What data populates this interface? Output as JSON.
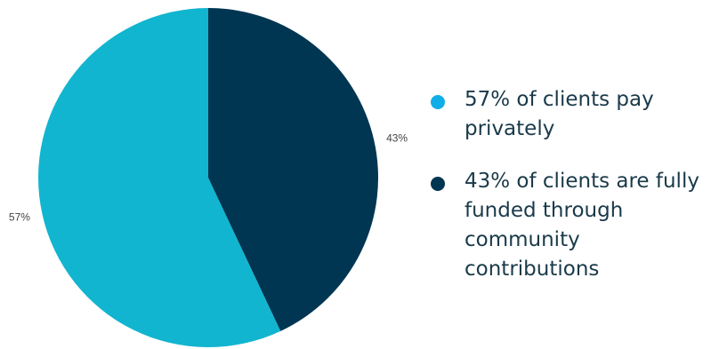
{
  "chart_data": {
    "type": "pie",
    "title": "",
    "slices": [
      {
        "label": "57%",
        "value": 57,
        "color": "#12b5cf"
      },
      {
        "label": "43%",
        "value": 43,
        "color": "#003652"
      }
    ],
    "start_angle_deg": 0,
    "direction": "counterclockwise",
    "grid": false,
    "legend_position": "right"
  },
  "legend": {
    "items": [
      {
        "text": "57% of clients pay privately",
        "dot_color": "#10aee8"
      },
      {
        "text": "43% of clients are fully funded through community contributions",
        "dot_color": "#003652"
      }
    ]
  }
}
